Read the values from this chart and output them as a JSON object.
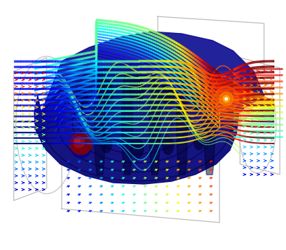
{
  "figsize": [
    4.17,
    3.64
  ],
  "dpi": 100,
  "bg_color": "#ffffff",
  "cmap": "jet",
  "outline_color": "#c0c0c0",
  "body_color": "#0a0a99",
  "body_dark": "#000055"
}
